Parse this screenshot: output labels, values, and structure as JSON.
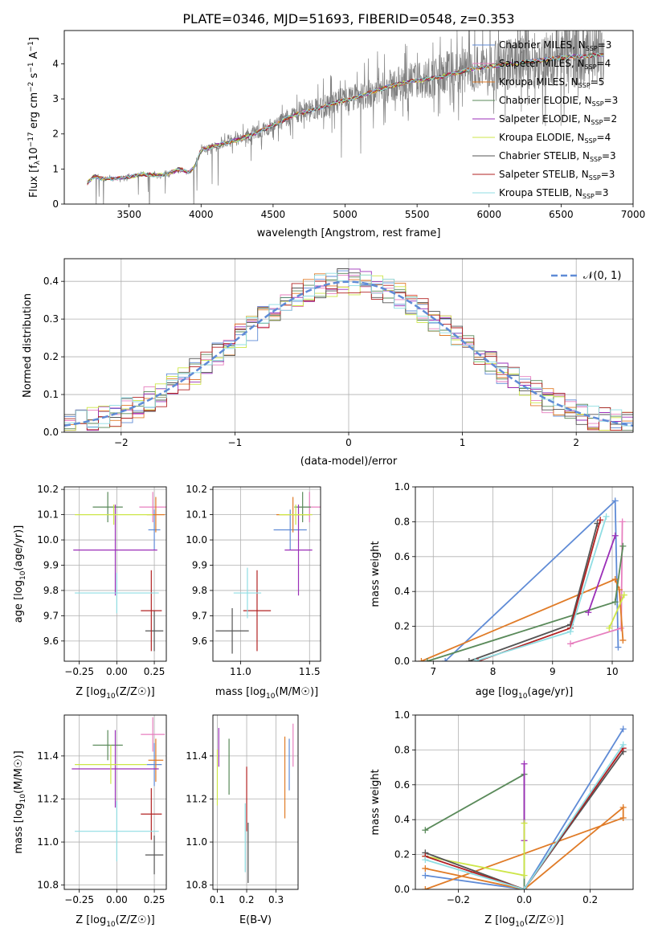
{
  "title": "PLATE=0346, MJD=51693, FIBERID=0548, z=0.353",
  "colors": {
    "Chabrier MILES": "#5f8bd6",
    "Salpeter MILES": "#e77fbf",
    "Kroupa MILES": "#e07b27",
    "Chabrier ELODIE": "#5a8a5a",
    "Salpeter ELODIE": "#9b2fb8",
    "Kroupa ELODIE": "#cde648",
    "Chabrier STELIB": "#555555",
    "Salpeter STELIB": "#b22222",
    "Kroupa STELIB": "#8fdde3",
    "data": "#808080"
  },
  "chart_data": [
    {
      "id": "spectrum",
      "type": "line",
      "xlabel": "wavelength [Angstrom, rest frame]",
      "ylabel": "Flux [f_λ 10^-17 erg cm^-2 s^-1 A^-1]",
      "xlim": [
        3050,
        7000
      ],
      "ylim": [
        0,
        4.95
      ],
      "xticks": [
        3500,
        4000,
        4500,
        5000,
        5500,
        6000,
        6500,
        7000
      ],
      "yticks": [
        0,
        1,
        2,
        3,
        4
      ],
      "grid": false,
      "legend_position": "top-right",
      "legend": [
        {
          "name": "Chabrier MILES",
          "nssp": "3"
        },
        {
          "name": "Salpeter MILES",
          "nssp": "4"
        },
        {
          "name": "Kroupa MILES",
          "nssp": "5"
        },
        {
          "name": "Chabrier ELODIE",
          "nssp": "3"
        },
        {
          "name": "Salpeter ELODIE",
          "nssp": "2"
        },
        {
          "name": "Kroupa ELODIE",
          "nssp": "4"
        },
        {
          "name": "Chabrier STELIB",
          "nssp": "3"
        },
        {
          "name": "Salpeter STELIB",
          "nssp": "3"
        },
        {
          "name": "Kroupa STELIB",
          "nssp": "3"
        }
      ],
      "continuum": {
        "x": [
          3210,
          3260,
          3300,
          3400,
          3500,
          3600,
          3700,
          3780,
          3850,
          3920,
          3960,
          4000,
          4050,
          4150,
          4250,
          4350,
          4450,
          4550,
          4650,
          4750,
          4850,
          4950,
          5050,
          5150,
          5250,
          5350,
          5450,
          5550,
          5650,
          5750,
          5850,
          5950,
          6050,
          6150,
          6250,
          6350,
          6450,
          6550,
          6650,
          6750,
          6800
        ],
        "y": [
          0.6,
          0.8,
          0.72,
          0.72,
          0.78,
          0.85,
          0.82,
          0.88,
          1.0,
          0.9,
          1.1,
          1.55,
          1.6,
          1.72,
          1.82,
          1.98,
          2.15,
          2.35,
          2.55,
          2.65,
          2.78,
          2.92,
          3.0,
          3.15,
          3.28,
          3.4,
          3.5,
          3.55,
          3.62,
          3.72,
          3.82,
          3.9,
          3.95,
          4.0,
          4.05,
          4.1,
          4.15,
          4.2,
          4.22,
          4.25,
          4.25
        ]
      }
    },
    {
      "id": "residuals",
      "type": "line",
      "xlabel": "(data-model)/error",
      "ylabel": "Normed distribution",
      "xlim": [
        -2.5,
        2.5
      ],
      "ylim": [
        0,
        0.46
      ],
      "xticks": [
        -2,
        -1,
        0,
        1,
        2
      ],
      "yticks": [
        0.0,
        0.1,
        0.2,
        0.3,
        0.4
      ],
      "grid": true,
      "legend_position": "top-right",
      "gaussian_label": "𝒩(0, 1)"
    },
    {
      "id": "age-vs-Z",
      "type": "scatter",
      "xlabel": "Z [log10(Z/Z☉)]",
      "ylabel": "age [log10(age/yr)]",
      "xlim": [
        -0.35,
        0.33
      ],
      "ylim": [
        9.52,
        10.21
      ],
      "xticks": [
        -0.25,
        0.0,
        0.25
      ],
      "yticks": [
        9.6,
        9.7,
        9.8,
        9.9,
        10.0,
        10.1,
        10.2
      ],
      "grid": true,
      "points": [
        {
          "model": "Chabrier MILES",
          "x": 0.25,
          "y": 10.04,
          "xerr": 0.04,
          "yerr": 0.08
        },
        {
          "model": "Salpeter MILES",
          "x": 0.24,
          "y": 10.13,
          "xerr": 0.09,
          "yerr": 0.06
        },
        {
          "model": "Kroupa MILES",
          "x": 0.26,
          "y": 10.1,
          "xerr": 0.06,
          "yerr": 0.07
        },
        {
          "model": "Chabrier ELODIE",
          "x": -0.06,
          "y": 10.13,
          "xerr": 0.1,
          "yerr": 0.06
        },
        {
          "model": "Salpeter ELODIE",
          "x": -0.01,
          "y": 9.96,
          "xerr": 0.28,
          "yerr": 0.18
        },
        {
          "model": "Kroupa ELODIE",
          "x": -0.02,
          "y": 10.1,
          "xerr": 0.26,
          "yerr": 0.04
        },
        {
          "model": "Chabrier STELIB",
          "x": 0.25,
          "y": 9.64,
          "xerr": 0.06,
          "yerr": 0.08
        },
        {
          "model": "Salpeter STELIB",
          "x": 0.23,
          "y": 9.72,
          "xerr": 0.07,
          "yerr": 0.16
        },
        {
          "model": "Kroupa STELIB",
          "x": 0.0,
          "y": 9.79,
          "xerr": 0.28,
          "yerr": 0.08
        }
      ]
    },
    {
      "id": "age-vs-mass",
      "type": "scatter",
      "xlabel": "mass [log10(M/M☉)]",
      "ylabel": "",
      "xlim": [
        10.8,
        11.58
      ],
      "ylim": [
        9.52,
        10.21
      ],
      "xticks": [
        11.0,
        11.5
      ],
      "yticks": [
        9.6,
        9.7,
        9.8,
        9.9,
        10.0,
        10.1,
        10.2
      ],
      "grid": true,
      "points": [
        {
          "model": "Chabrier MILES",
          "x": 11.36,
          "y": 10.04,
          "xerr": 0.12,
          "yerr": 0.08
        },
        {
          "model": "Salpeter MILES",
          "x": 11.5,
          "y": 10.13,
          "xerr": 0.08,
          "yerr": 0.06
        },
        {
          "model": "Kroupa MILES",
          "x": 11.38,
          "y": 10.1,
          "xerr": 0.12,
          "yerr": 0.07
        },
        {
          "model": "Chabrier ELODIE",
          "x": 11.45,
          "y": 10.13,
          "xerr": 0.06,
          "yerr": 0.06
        },
        {
          "model": "Salpeter ELODIE",
          "x": 11.42,
          "y": 9.96,
          "xerr": 0.1,
          "yerr": 0.18
        },
        {
          "model": "Kroupa ELODIE",
          "x": 11.4,
          "y": 10.1,
          "xerr": 0.12,
          "yerr": 0.04
        },
        {
          "model": "Chabrier STELIB",
          "x": 10.94,
          "y": 9.64,
          "xerr": 0.12,
          "yerr": 0.09
        },
        {
          "model": "Salpeter STELIB",
          "x": 11.12,
          "y": 9.72,
          "xerr": 0.1,
          "yerr": 0.16
        },
        {
          "model": "Kroupa STELIB",
          "x": 11.05,
          "y": 9.79,
          "xerr": 0.1,
          "yerr": 0.1
        }
      ]
    },
    {
      "id": "weight-vs-age",
      "type": "line",
      "xlabel": "age [log10(age/yr)]",
      "ylabel": "mass weight",
      "xlim": [
        6.7,
        10.35
      ],
      "ylim": [
        0,
        1.0
      ],
      "xticks": [
        7,
        8,
        9,
        10
      ],
      "yticks": [
        0.0,
        0.2,
        0.4,
        0.6,
        0.8,
        1.0
      ],
      "grid": true,
      "series": [
        {
          "model": "Chabrier MILES",
          "x": [
            7.2,
            10.05,
            10.1
          ],
          "y": [
            0.0,
            0.92,
            0.08
          ]
        },
        {
          "model": "Salpeter MILES",
          "x": [
            9.3,
            10.15,
            10.17
          ],
          "y": [
            0.1,
            0.19,
            0.8
          ]
        },
        {
          "model": "Kroupa MILES",
          "x": [
            6.8,
            10.05,
            10.12,
            10.18
          ],
          "y": [
            0.0,
            0.47,
            0.41,
            0.12
          ]
        },
        {
          "model": "Chabrier ELODIE",
          "x": [
            6.9,
            10.05,
            10.18
          ],
          "y": [
            0.0,
            0.34,
            0.66
          ]
        },
        {
          "model": "Salpeter ELODIE",
          "x": [
            9.6,
            10.05
          ],
          "y": [
            0.28,
            0.72
          ]
        },
        {
          "model": "Kroupa ELODIE",
          "x": [
            9.95,
            10.2
          ],
          "y": [
            0.19,
            0.38
          ]
        },
        {
          "model": "Chabrier STELIB",
          "x": [
            7.6,
            9.3,
            9.75
          ],
          "y": [
            0.0,
            0.21,
            0.79
          ]
        },
        {
          "model": "Salpeter STELIB",
          "x": [
            7.75,
            9.3,
            9.8
          ],
          "y": [
            0.0,
            0.19,
            0.81
          ]
        },
        {
          "model": "Kroupa STELIB",
          "x": [
            7.7,
            9.3,
            9.9
          ],
          "y": [
            0.0,
            0.17,
            0.83
          ]
        }
      ]
    },
    {
      "id": "mass-vs-Z",
      "type": "scatter",
      "xlabel": "Z [log10(Z/Z☉)]",
      "ylabel": "mass [log10(M/M☉)]",
      "xlim": [
        -0.35,
        0.33
      ],
      "ylim": [
        10.78,
        11.59
      ],
      "xticks": [
        -0.25,
        0.0,
        0.25
      ],
      "yticks": [
        10.8,
        11.0,
        11.2,
        11.4
      ],
      "grid": true,
      "points": [
        {
          "model": "Chabrier MILES",
          "x": 0.25,
          "y": 11.36,
          "xerr": 0.05,
          "yerr": 0.1
        },
        {
          "model": "Salpeter MILES",
          "x": 0.24,
          "y": 11.5,
          "xerr": 0.08,
          "yerr": 0.08
        },
        {
          "model": "Kroupa MILES",
          "x": 0.26,
          "y": 11.38,
          "xerr": 0.05,
          "yerr": 0.1
        },
        {
          "model": "Chabrier ELODIE",
          "x": -0.06,
          "y": 11.45,
          "xerr": 0.1,
          "yerr": 0.07
        },
        {
          "model": "Salpeter ELODIE",
          "x": -0.01,
          "y": 11.34,
          "xerr": 0.29,
          "yerr": 0.18
        },
        {
          "model": "Kroupa ELODIE",
          "x": -0.04,
          "y": 11.36,
          "xerr": 0.24,
          "yerr": 0.09
        },
        {
          "model": "Chabrier STELIB",
          "x": 0.25,
          "y": 10.94,
          "xerr": 0.06,
          "yerr": 0.09
        },
        {
          "model": "Salpeter STELIB",
          "x": 0.23,
          "y": 11.13,
          "xerr": 0.07,
          "yerr": 0.12
        },
        {
          "model": "Kroupa STELIB",
          "x": 0.0,
          "y": 11.05,
          "xerr": 0.28,
          "yerr": 0.14
        }
      ]
    },
    {
      "id": "mass-vs-ebv",
      "type": "scatter",
      "xlabel": "E(B-V)",
      "ylabel": "",
      "xlim": [
        0.085,
        0.375
      ],
      "ylim": [
        10.78,
        11.59
      ],
      "xticks": [
        0.1,
        0.2,
        0.3
      ],
      "yticks": [
        10.8,
        11.0,
        11.2,
        11.4
      ],
      "grid": true,
      "points": [
        {
          "model": "Chabrier MILES",
          "x": 0.345,
          "y": 11.36,
          "xerr": 0.0,
          "yerr": 0.12
        },
        {
          "model": "Salpeter MILES",
          "x": 0.358,
          "y": 11.45,
          "xerr": 0.0,
          "yerr": 0.1
        },
        {
          "model": "Kroupa MILES",
          "x": 0.33,
          "y": 11.3,
          "xerr": 0.0,
          "yerr": 0.19
        },
        {
          "model": "Chabrier ELODIE",
          "x": 0.14,
          "y": 11.35,
          "xerr": 0.0,
          "yerr": 0.13
        },
        {
          "model": "Salpeter ELODIE",
          "x": 0.105,
          "y": 11.44,
          "xerr": 0.0,
          "yerr": 0.09
        },
        {
          "model": "Kroupa ELODIE",
          "x": 0.1,
          "y": 11.3,
          "xerr": 0.0,
          "yerr": 0.13
        },
        {
          "model": "Chabrier STELIB",
          "x": 0.205,
          "y": 10.95,
          "xerr": 0.0,
          "yerr": 0.14
        },
        {
          "model": "Salpeter STELIB",
          "x": 0.2,
          "y": 11.2,
          "xerr": 0.0,
          "yerr": 0.15
        },
        {
          "model": "Kroupa STELIB",
          "x": 0.195,
          "y": 11.02,
          "xerr": 0.0,
          "yerr": 0.16
        }
      ]
    },
    {
      "id": "weight-vs-Z",
      "type": "line",
      "xlabel": "Z [log10(Z/Z☉)]",
      "ylabel": "mass weight",
      "xlim": [
        -0.33,
        0.33
      ],
      "ylim": [
        0,
        1.0
      ],
      "xticks": [
        -0.2,
        0.0,
        0.2
      ],
      "yticks": [
        0.0,
        0.2,
        0.4,
        0.6,
        0.8,
        1.0
      ],
      "grid": true,
      "series": [
        {
          "model": "Chabrier MILES",
          "x": [
            -0.3,
            0.0,
            0.3
          ],
          "y": [
            0.08,
            0.0,
            0.92
          ]
        },
        {
          "model": "Salpeter MILES",
          "x": [
            -0.3,
            0.0,
            0.3
          ],
          "y": [
            0.19,
            0.0,
            0.81
          ]
        },
        {
          "model": "Kroupa MILES",
          "x": [
            -0.3,
            0.0,
            0.3,
            0.3,
            -0.3
          ],
          "y": [
            0.12,
            0.0,
            0.47,
            0.41,
            0.0
          ]
        },
        {
          "model": "Chabrier ELODIE",
          "x": [
            -0.3,
            0.0,
            0.0
          ],
          "y": [
            0.34,
            0.66,
            0.0
          ]
        },
        {
          "model": "Salpeter ELODIE",
          "x": [
            0.0,
            0.0
          ],
          "y": [
            0.72,
            0.28
          ]
        },
        {
          "model": "Kroupa ELODIE",
          "x": [
            -0.3,
            0.0,
            0.0
          ],
          "y": [
            0.19,
            0.08,
            0.38
          ]
        },
        {
          "model": "Chabrier STELIB",
          "x": [
            -0.3,
            0.0,
            0.3
          ],
          "y": [
            0.21,
            0.0,
            0.79
          ]
        },
        {
          "model": "Salpeter STELIB",
          "x": [
            -0.3,
            0.0,
            0.3
          ],
          "y": [
            0.19,
            0.0,
            0.81
          ]
        },
        {
          "model": "Kroupa STELIB",
          "x": [
            -0.3,
            0.0,
            0.3
          ],
          "y": [
            0.17,
            0.0,
            0.83
          ]
        }
      ]
    }
  ]
}
